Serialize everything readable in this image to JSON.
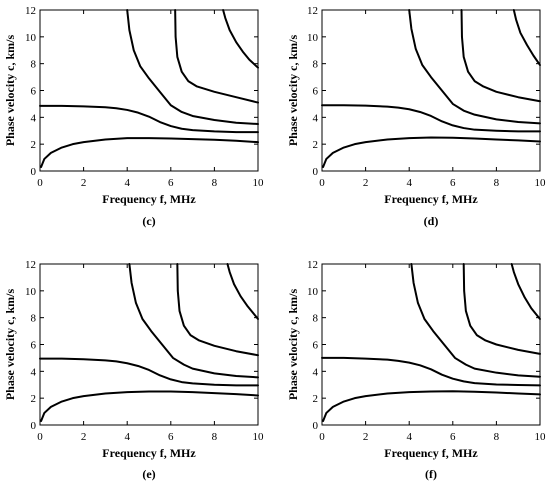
{
  "chart_data": [
    {
      "type": "line",
      "panel_label": "(c)",
      "xlabel": "Frequency f, MHz",
      "ylabel": "Phase velocity c, km/s",
      "xlim": [
        0,
        10
      ],
      "ylim": [
        0,
        12
      ],
      "x_ticks": [
        "0",
        "2",
        "4",
        "6",
        "8",
        "10"
      ],
      "y_ticks": [
        "0",
        "2",
        "4",
        "6",
        "8",
        "10",
        "12"
      ],
      "grid": false,
      "series": [
        {
          "x": [
            0.05,
            0.2,
            0.5,
            1,
            1.5,
            2,
            3,
            4,
            5,
            6,
            7,
            8,
            9,
            10
          ],
          "y": [
            0.3,
            0.9,
            1.35,
            1.75,
            2.0,
            2.15,
            2.35,
            2.45,
            2.45,
            2.42,
            2.38,
            2.33,
            2.25,
            2.15
          ]
        },
        {
          "x": [
            0,
            1,
            2,
            3,
            3.5,
            4,
            4.5,
            5,
            5.5,
            6,
            6.5,
            7,
            8,
            9,
            10
          ],
          "y": [
            4.85,
            4.85,
            4.82,
            4.75,
            4.68,
            4.55,
            4.35,
            4.05,
            3.65,
            3.35,
            3.15,
            3.05,
            2.95,
            2.9,
            2.9
          ]
        },
        {
          "x": [
            4.0,
            4.1,
            4.3,
            4.6,
            5.0,
            5.5,
            6.0,
            6.5,
            7.0,
            8.0,
            9.0,
            10.0
          ],
          "y": [
            12,
            10.5,
            9.0,
            7.8,
            6.9,
            5.9,
            4.9,
            4.4,
            4.1,
            3.8,
            3.6,
            3.5
          ]
        },
        {
          "x": [
            6.2,
            6.22,
            6.3,
            6.5,
            6.8,
            7.2,
            8.0,
            9.0,
            10.0
          ],
          "y": [
            12,
            10.0,
            8.5,
            7.4,
            6.7,
            6.3,
            5.9,
            5.5,
            5.1
          ]
        },
        {
          "x": [
            8.4,
            8.5,
            8.7,
            9.0,
            9.3,
            9.6,
            10.0
          ],
          "y": [
            12,
            11.4,
            10.5,
            9.6,
            8.9,
            8.3,
            7.7
          ]
        }
      ]
    },
    {
      "type": "line",
      "panel_label": "(d)",
      "xlabel": "Frequency f, MHz",
      "ylabel": "Phase velocity c, km/s",
      "xlim": [
        0,
        10
      ],
      "ylim": [
        0,
        12
      ],
      "x_ticks": [
        "0",
        "2",
        "4",
        "6",
        "8",
        "10"
      ],
      "y_ticks": [
        "0",
        "2",
        "4",
        "6",
        "8",
        "10",
        "12"
      ],
      "grid": false,
      "series": [
        {
          "x": [
            0.05,
            0.2,
            0.5,
            1,
            1.5,
            2,
            3,
            4,
            5,
            6,
            7,
            8,
            9,
            10
          ],
          "y": [
            0.3,
            0.9,
            1.35,
            1.75,
            2.0,
            2.15,
            2.35,
            2.45,
            2.5,
            2.48,
            2.42,
            2.35,
            2.28,
            2.2
          ]
        },
        {
          "x": [
            0,
            1,
            2,
            3,
            3.5,
            4,
            4.5,
            5,
            5.5,
            6,
            6.5,
            7,
            8,
            9,
            10
          ],
          "y": [
            4.9,
            4.9,
            4.87,
            4.8,
            4.72,
            4.6,
            4.4,
            4.1,
            3.7,
            3.4,
            3.2,
            3.08,
            3.0,
            2.95,
            2.95
          ]
        },
        {
          "x": [
            4.0,
            4.1,
            4.3,
            4.6,
            5.0,
            5.5,
            6.0,
            6.5,
            7.0,
            8.0,
            9.0,
            10.0
          ],
          "y": [
            12,
            10.6,
            9.1,
            7.9,
            7.0,
            6.0,
            5.0,
            4.5,
            4.2,
            3.85,
            3.65,
            3.55
          ]
        },
        {
          "x": [
            6.4,
            6.42,
            6.5,
            6.7,
            7.0,
            7.4,
            8.0,
            9.0,
            10.0
          ],
          "y": [
            12,
            10.0,
            8.5,
            7.4,
            6.7,
            6.3,
            5.9,
            5.5,
            5.2
          ]
        },
        {
          "x": [
            8.8,
            8.9,
            9.1,
            9.4,
            9.7,
            10.0
          ],
          "y": [
            12,
            11.3,
            10.3,
            9.4,
            8.6,
            7.9
          ]
        }
      ]
    },
    {
      "type": "line",
      "panel_label": "(e)",
      "xlabel": "Frequency f, MHz",
      "ylabel": "Phase velocity c, km/s",
      "xlim": [
        0,
        10
      ],
      "ylim": [
        0,
        12
      ],
      "x_ticks": [
        "0",
        "2",
        "4",
        "6",
        "8",
        "10"
      ],
      "y_ticks": [
        "0",
        "2",
        "4",
        "6",
        "8",
        "10",
        "12"
      ],
      "grid": false,
      "series": [
        {
          "x": [
            0.05,
            0.2,
            0.5,
            1,
            1.5,
            2,
            3,
            4,
            5,
            6,
            7,
            8,
            9,
            10
          ],
          "y": [
            0.3,
            0.9,
            1.35,
            1.75,
            2.0,
            2.15,
            2.35,
            2.45,
            2.5,
            2.5,
            2.45,
            2.38,
            2.3,
            2.2
          ]
        },
        {
          "x": [
            0,
            1,
            2,
            3,
            3.5,
            4,
            4.5,
            5,
            5.5,
            6,
            6.5,
            7,
            8,
            9,
            10
          ],
          "y": [
            4.95,
            4.95,
            4.9,
            4.82,
            4.74,
            4.6,
            4.4,
            4.1,
            3.7,
            3.4,
            3.2,
            3.1,
            3.0,
            2.95,
            2.95
          ]
        },
        {
          "x": [
            4.1,
            4.2,
            4.4,
            4.7,
            5.1,
            5.6,
            6.1,
            6.6,
            7.0,
            8.0,
            9.0,
            10.0
          ],
          "y": [
            12,
            10.6,
            9.1,
            7.9,
            7.0,
            6.0,
            5.0,
            4.5,
            4.2,
            3.85,
            3.65,
            3.55
          ]
        },
        {
          "x": [
            6.3,
            6.32,
            6.4,
            6.6,
            6.9,
            7.3,
            8.0,
            9.0,
            10.0
          ],
          "y": [
            12,
            10.0,
            8.5,
            7.4,
            6.7,
            6.3,
            5.9,
            5.5,
            5.2
          ]
        },
        {
          "x": [
            8.6,
            8.7,
            8.9,
            9.2,
            9.5,
            9.8,
            10.0
          ],
          "y": [
            12,
            11.4,
            10.5,
            9.6,
            8.9,
            8.3,
            7.9
          ]
        }
      ]
    },
    {
      "type": "line",
      "panel_label": "(f)",
      "xlabel": "Frequency f, MHz",
      "ylabel": "Phase velocity c, km/s",
      "xlim": [
        0,
        10
      ],
      "ylim": [
        0,
        12
      ],
      "x_ticks": [
        "0",
        "2",
        "4",
        "6",
        "8",
        "10"
      ],
      "y_ticks": [
        "0",
        "2",
        "4",
        "6",
        "8",
        "10",
        "12"
      ],
      "grid": false,
      "series": [
        {
          "x": [
            0.05,
            0.2,
            0.5,
            1,
            1.5,
            2,
            3,
            4,
            5,
            6,
            7,
            8,
            9,
            10
          ],
          "y": [
            0.3,
            0.9,
            1.35,
            1.75,
            2.0,
            2.15,
            2.35,
            2.45,
            2.5,
            2.52,
            2.48,
            2.42,
            2.35,
            2.28
          ]
        },
        {
          "x": [
            0,
            1,
            2,
            3,
            3.5,
            4,
            4.5,
            5,
            5.5,
            6,
            6.5,
            7,
            8,
            9,
            10
          ],
          "y": [
            5.0,
            5.0,
            4.95,
            4.87,
            4.78,
            4.65,
            4.45,
            4.15,
            3.75,
            3.45,
            3.25,
            3.12,
            3.02,
            2.98,
            2.95
          ]
        },
        {
          "x": [
            4.1,
            4.2,
            4.4,
            4.7,
            5.1,
            5.6,
            6.1,
            6.6,
            7.0,
            8.0,
            9.0,
            10.0
          ],
          "y": [
            12,
            10.6,
            9.1,
            7.9,
            7.0,
            6.0,
            5.0,
            4.5,
            4.2,
            3.9,
            3.7,
            3.6
          ]
        },
        {
          "x": [
            6.5,
            6.52,
            6.6,
            6.8,
            7.1,
            7.5,
            8.0,
            9.0,
            10.0
          ],
          "y": [
            12,
            10.0,
            8.5,
            7.4,
            6.7,
            6.3,
            6.0,
            5.6,
            5.3
          ]
        },
        {
          "x": [
            8.7,
            8.8,
            9.0,
            9.3,
            9.6,
            9.9,
            10.0
          ],
          "y": [
            12,
            11.4,
            10.5,
            9.5,
            8.7,
            8.1,
            7.9
          ]
        }
      ]
    }
  ]
}
